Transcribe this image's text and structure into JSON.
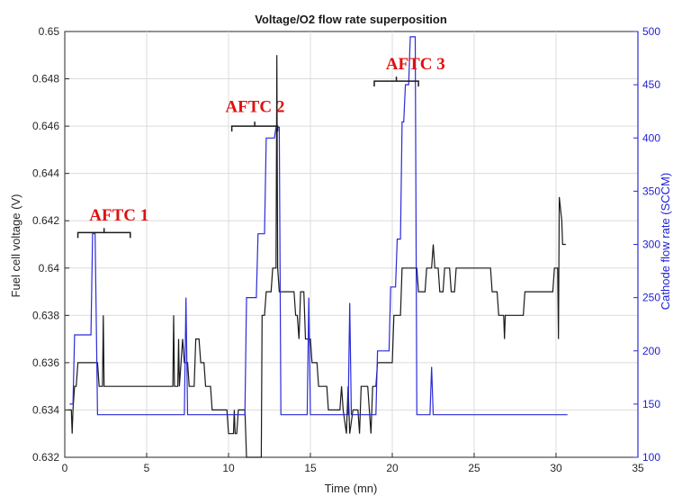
{
  "chart_data": {
    "type": "line",
    "title": "Voltage/O2 flow rate superposition",
    "xlabel": "Time (mn)",
    "ylabel_left": "Fuel cell voltage (V)",
    "ylabel_right": "Cathode flow rate (SCCM)",
    "xlim": [
      0,
      35
    ],
    "ylim_left": [
      0.632,
      0.65
    ],
    "ylim_right": [
      100,
      500
    ],
    "x_ticks": [
      "0",
      "5",
      "10",
      "15",
      "20",
      "25",
      "30",
      "35"
    ],
    "y_left_ticks": [
      "0.632",
      "0.634",
      "0.636",
      "0.638",
      "0.64",
      "0.642",
      "0.644",
      "0.646",
      "0.648",
      "0.65"
    ],
    "y_right_ticks": [
      "100",
      "150",
      "200",
      "250",
      "300",
      "350",
      "400",
      "450",
      "500"
    ],
    "grid": true,
    "series_colors": {
      "voltage": "#1a1a1a",
      "flow": "#2b2bd9",
      "annotation": "#e01010"
    },
    "series": [
      {
        "axis": "left",
        "points": [
          [
            0.2,
            0.634
          ],
          [
            0.4,
            0.634
          ],
          [
            0.45,
            0.633
          ],
          [
            0.5,
            0.634
          ],
          [
            0.6,
            0.635
          ],
          [
            0.7,
            0.635
          ],
          [
            0.8,
            0.636
          ],
          [
            2.0,
            0.636
          ],
          [
            2.1,
            0.635
          ],
          [
            2.3,
            0.635
          ],
          [
            2.35,
            0.638
          ],
          [
            2.4,
            0.635
          ],
          [
            6.6,
            0.635
          ],
          [
            6.65,
            0.638
          ],
          [
            6.7,
            0.635
          ],
          [
            6.9,
            0.635
          ],
          [
            6.95,
            0.637
          ],
          [
            7.0,
            0.635
          ],
          [
            7.1,
            0.636
          ],
          [
            7.2,
            0.637
          ],
          [
            7.3,
            0.636
          ],
          [
            7.5,
            0.636
          ],
          [
            7.6,
            0.635
          ],
          [
            7.9,
            0.635
          ],
          [
            8.0,
            0.637
          ],
          [
            8.2,
            0.637
          ],
          [
            8.3,
            0.636
          ],
          [
            8.5,
            0.636
          ],
          [
            8.6,
            0.635
          ],
          [
            8.9,
            0.635
          ],
          [
            9.0,
            0.634
          ],
          [
            9.9,
            0.634
          ],
          [
            10.0,
            0.633
          ],
          [
            10.3,
            0.633
          ],
          [
            10.35,
            0.634
          ],
          [
            10.4,
            0.633
          ],
          [
            10.5,
            0.633
          ],
          [
            10.6,
            0.634
          ],
          [
            11.0,
            0.634
          ],
          [
            11.1,
            0.632
          ],
          [
            12.0,
            0.632
          ],
          [
            12.05,
            0.638
          ],
          [
            12.2,
            0.638
          ],
          [
            12.3,
            0.639
          ],
          [
            12.6,
            0.639
          ],
          [
            12.7,
            0.64
          ],
          [
            12.9,
            0.64
          ],
          [
            12.95,
            0.649
          ],
          [
            13.0,
            0.64
          ],
          [
            13.1,
            0.639
          ],
          [
            14.0,
            0.639
          ],
          [
            14.1,
            0.638
          ],
          [
            14.2,
            0.638
          ],
          [
            14.3,
            0.637
          ],
          [
            14.4,
            0.639
          ],
          [
            14.6,
            0.639
          ],
          [
            14.7,
            0.637
          ],
          [
            15.0,
            0.637
          ],
          [
            15.1,
            0.636
          ],
          [
            15.4,
            0.636
          ],
          [
            15.5,
            0.635
          ],
          [
            16.0,
            0.635
          ],
          [
            16.1,
            0.634
          ],
          [
            16.8,
            0.634
          ],
          [
            16.9,
            0.635
          ],
          [
            17.0,
            0.634
          ],
          [
            17.2,
            0.633
          ],
          [
            17.3,
            0.635
          ],
          [
            17.4,
            0.633
          ],
          [
            17.6,
            0.634
          ],
          [
            17.9,
            0.634
          ],
          [
            18.0,
            0.633
          ],
          [
            18.1,
            0.635
          ],
          [
            18.5,
            0.635
          ],
          [
            18.6,
            0.634
          ],
          [
            18.7,
            0.633
          ],
          [
            18.8,
            0.635
          ],
          [
            19.0,
            0.635
          ],
          [
            19.1,
            0.636
          ],
          [
            20.0,
            0.636
          ],
          [
            20.1,
            0.638
          ],
          [
            20.5,
            0.638
          ],
          [
            20.6,
            0.64
          ],
          [
            21.5,
            0.64
          ],
          [
            21.6,
            0.639
          ],
          [
            22.0,
            0.639
          ],
          [
            22.1,
            0.64
          ],
          [
            22.4,
            0.64
          ],
          [
            22.5,
            0.641
          ],
          [
            22.6,
            0.64
          ],
          [
            22.8,
            0.64
          ],
          [
            22.9,
            0.639
          ],
          [
            23.1,
            0.639
          ],
          [
            23.2,
            0.64
          ],
          [
            23.5,
            0.64
          ],
          [
            23.6,
            0.639
          ],
          [
            23.8,
            0.639
          ],
          [
            23.9,
            0.64
          ],
          [
            26.0,
            0.64
          ],
          [
            26.1,
            0.639
          ],
          [
            26.4,
            0.639
          ],
          [
            26.5,
            0.638
          ],
          [
            26.8,
            0.638
          ],
          [
            26.85,
            0.637
          ],
          [
            26.9,
            0.638
          ],
          [
            28.0,
            0.638
          ],
          [
            28.1,
            0.639
          ],
          [
            29.8,
            0.639
          ],
          [
            29.9,
            0.64
          ],
          [
            30.1,
            0.64
          ],
          [
            30.15,
            0.637
          ],
          [
            30.2,
            0.643
          ],
          [
            30.35,
            0.642
          ],
          [
            30.4,
            0.641
          ],
          [
            30.6,
            0.641
          ]
        ]
      },
      {
        "axis": "right",
        "points": [
          [
            0.3,
            150
          ],
          [
            0.5,
            150
          ],
          [
            0.6,
            215
          ],
          [
            1.6,
            215
          ],
          [
            1.7,
            310
          ],
          [
            1.85,
            310
          ],
          [
            2.0,
            140
          ],
          [
            7.3,
            140
          ],
          [
            7.4,
            250
          ],
          [
            7.5,
            140
          ],
          [
            11.0,
            140
          ],
          [
            11.1,
            250
          ],
          [
            11.7,
            250
          ],
          [
            11.8,
            310
          ],
          [
            12.2,
            310
          ],
          [
            12.3,
            400
          ],
          [
            12.8,
            400
          ],
          [
            12.9,
            410
          ],
          [
            13.1,
            410
          ],
          [
            13.2,
            140
          ],
          [
            14.8,
            140
          ],
          [
            14.9,
            250
          ],
          [
            15.0,
            140
          ],
          [
            17.3,
            140
          ],
          [
            17.4,
            245
          ],
          [
            17.5,
            140
          ],
          [
            19.0,
            140
          ],
          [
            19.1,
            200
          ],
          [
            19.8,
            200
          ],
          [
            19.9,
            260
          ],
          [
            20.2,
            260
          ],
          [
            20.3,
            305
          ],
          [
            20.5,
            305
          ],
          [
            20.6,
            415
          ],
          [
            20.7,
            415
          ],
          [
            20.8,
            450
          ],
          [
            21.0,
            450
          ],
          [
            21.1,
            495
          ],
          [
            21.4,
            495
          ],
          [
            21.5,
            140
          ],
          [
            22.3,
            140
          ],
          [
            22.4,
            185
          ],
          [
            22.5,
            140
          ],
          [
            30.7,
            140
          ]
        ]
      }
    ],
    "annotations": [
      {
        "label": "AFTC 1",
        "x_start": 0.8,
        "x_end": 4.0,
        "y": 0.6415,
        "label_x": 1.5,
        "label_y": 0.642
      },
      {
        "label": "AFTC 2",
        "x_start": 10.2,
        "x_end": 13.0,
        "y": 0.646,
        "label_x": 9.8,
        "label_y": 0.6466
      },
      {
        "label": "AFTC 3",
        "x_start": 18.9,
        "x_end": 21.6,
        "y": 0.6479,
        "label_x": 19.6,
        "label_y": 0.6484
      }
    ]
  }
}
